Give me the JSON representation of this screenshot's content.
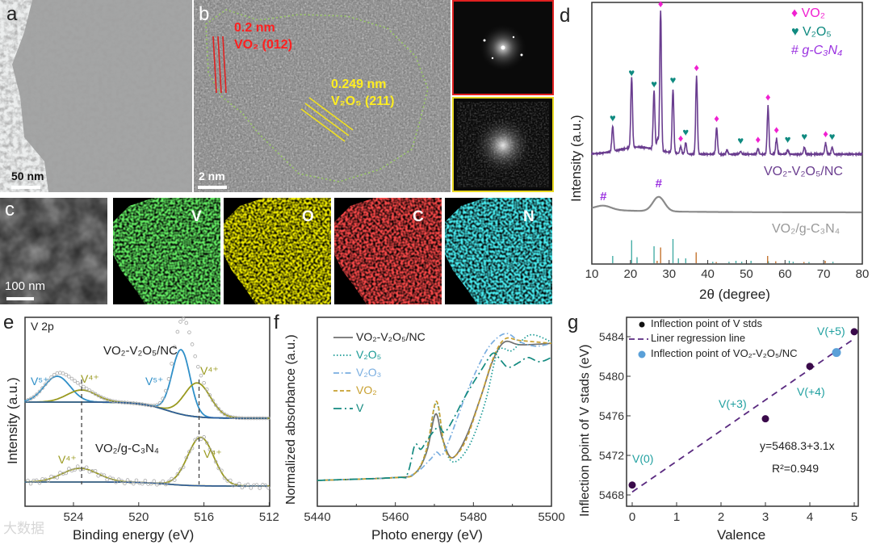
{
  "panels": {
    "a": {
      "letter": "a",
      "scale_bar": "50 nm"
    },
    "b": {
      "letter": "b",
      "scale_bar": "2 nm",
      "lattice1_spacing": "0.2 nm",
      "lattice1_phase": "VO₂ (012)",
      "lattice2_spacing": "0.249 nm",
      "lattice2_phase": "V₂O₅ (211)"
    },
    "c": {
      "letter": "c",
      "scale_bar": "100 nm",
      "maps": [
        "V",
        "O",
        "C",
        "N"
      ],
      "map_colors": [
        "#1fd11f",
        "#d8d000",
        "#e81010",
        "#10d0d8"
      ]
    },
    "d": {
      "letter": "d"
    },
    "e": {
      "letter": "e"
    },
    "f": {
      "letter": "f"
    },
    "g": {
      "letter": "g"
    }
  },
  "watermark": "大数据",
  "colors": {
    "purple": "#6a3d8f",
    "gray": "#8a8a8a",
    "magenta": "#f020d0",
    "teal": "#0f8a80",
    "orange": "#c06a20",
    "blue": "#2f8fc8",
    "olive": "#9a9a20"
  },
  "chart_data": [
    {
      "id": "d",
      "type": "line",
      "xlabel": "2θ (degree)",
      "ylabel": "Intensity (a.u.)",
      "xlim": [
        10,
        80
      ],
      "xticks": [
        10,
        20,
        30,
        40,
        50,
        60,
        70,
        80
      ],
      "legend": [
        {
          "symbol": "♦",
          "label": "VO₂"
        },
        {
          "symbol": "♥",
          "label": "V₂O₅"
        },
        {
          "symbol": "#",
          "label": "g-C₃N₄"
        }
      ],
      "legend_position": "top-right",
      "series": [
        {
          "name": "VO₂-V₂O₅/NC",
          "peaks": [
            [
              15.4,
              0.18
            ],
            [
              20.3,
              0.5
            ],
            [
              26.1,
              0.42
            ],
            [
              27.0,
              0.08
            ],
            [
              27.8,
              1.0
            ],
            [
              31.0,
              0.45
            ],
            [
              33.0,
              0.05
            ],
            [
              34.3,
              0.08
            ],
            [
              37.1,
              0.55
            ],
            [
              42.3,
              0.19
            ],
            [
              45.0,
              0.03
            ],
            [
              48.5,
              0.02
            ],
            [
              53.0,
              0.04
            ],
            [
              55.6,
              0.34
            ],
            [
              57.8,
              0.11
            ],
            [
              60.7,
              0.03
            ],
            [
              65.0,
              0.05
            ],
            [
              70.5,
              0.08
            ],
            [
              72.2,
              0.05
            ]
          ]
        },
        {
          "name": "VO₂/g-C₃N₄",
          "peaks": [
            [
              13.0,
              0.05
            ],
            [
              27.3,
              0.18
            ]
          ]
        }
      ],
      "markers_VO2": [
        27.8,
        33.0,
        37.1,
        42.3,
        53.0,
        55.6,
        57.8,
        70.5
      ],
      "markers_V2O5": [
        15.4,
        20.3,
        26.1,
        31.0,
        34.3,
        48.5,
        60.7,
        65.0,
        72.2
      ],
      "markers_gC3N4": [
        13.0,
        27.3
      ],
      "ref_V2O5": [
        [
          15.4,
          0.3
        ],
        [
          20.3,
          0.95
        ],
        [
          21.7,
          0.25
        ],
        [
          26.1,
          0.7
        ],
        [
          31.0,
          1.0
        ],
        [
          32.4,
          0.2
        ],
        [
          34.3,
          0.2
        ],
        [
          41.3,
          0.06
        ],
        [
          45.5,
          0.06
        ],
        [
          47.3,
          0.1
        ],
        [
          48.8,
          0.06
        ],
        [
          51.2,
          0.1
        ],
        [
          55.7,
          0.08
        ],
        [
          61.1,
          0.1
        ],
        [
          62.1,
          0.06
        ],
        [
          66.2,
          0.05
        ],
        [
          72.4,
          0.06
        ]
      ],
      "ref_VO2": [
        [
          26.9,
          0.1
        ],
        [
          27.8,
          0.65
        ],
        [
          37.0,
          0.45
        ],
        [
          42.2,
          0.05
        ],
        [
          55.5,
          0.3
        ],
        [
          57.6,
          0.08
        ],
        [
          64.9,
          0.05
        ],
        [
          70.4,
          0.1
        ]
      ]
    },
    {
      "id": "e",
      "type": "line",
      "title": "V 2p",
      "xlabel": "Binding energy (eV)",
      "ylabel": "Intensity (a.u.)",
      "xlim": [
        527,
        512
      ],
      "xticks": [
        524,
        520,
        516,
        512
      ],
      "samples": [
        {
          "name": "VO₂-V₂O₅/NC",
          "components": [
            {
              "label": "V⁵⁺",
              "center": 525.0,
              "amp": 32,
              "sigma": 0.8,
              "color": "blue"
            },
            {
              "label": "V⁴⁺",
              "center": 523.5,
              "amp": 15,
              "sigma": 0.9,
              "color": "olive"
            },
            {
              "label": "V⁵⁺",
              "center": 517.4,
              "amp": 80,
              "sigma": 0.55,
              "color": "blue"
            },
            {
              "label": "V⁴⁺",
              "center": 516.4,
              "amp": 42,
              "sigma": 0.8,
              "color": "olive"
            }
          ]
        },
        {
          "name": "VO₂/g-C₃N₄",
          "components": [
            {
              "label": "V⁴⁺",
              "center": 523.6,
              "amp": 17,
              "sigma": 1.1,
              "color": "olive"
            },
            {
              "label": "V⁴⁺",
              "center": 516.2,
              "amp": 60,
              "sigma": 0.8,
              "color": "olive"
            }
          ]
        }
      ],
      "reference_lines": [
        523.5,
        516.3
      ]
    },
    {
      "id": "f",
      "type": "line",
      "xlabel": "Photo energy (eV)",
      "ylabel": "Normalized absorbance (a.u.)",
      "xlim": [
        5440,
        5500
      ],
      "xticks": [
        5440,
        5460,
        5480,
        5500
      ],
      "legend_position": "top-left",
      "series": [
        {
          "name": "VO₂-V₂O₅/NC",
          "style": "solid",
          "color": "#707070",
          "points": [
            [
              5440,
              0
            ],
            [
              5460,
              0.02
            ],
            [
              5465,
              0.05
            ],
            [
              5468,
              0.2
            ],
            [
              5470.3,
              0.47
            ],
            [
              5472,
              0.3
            ],
            [
              5474.5,
              0.16
            ],
            [
              5478,
              0.3
            ],
            [
              5482,
              0.6
            ],
            [
              5485,
              0.85
            ],
            [
              5488,
              0.98
            ],
            [
              5492,
              0.96
            ],
            [
              5500,
              0.97
            ]
          ]
        },
        {
          "name": "V₂O₅",
          "style": "dotted",
          "color": "#1a9a95",
          "points": [
            [
              5440,
              0
            ],
            [
              5460,
              0.02
            ],
            [
              5465,
              0.05
            ],
            [
              5468,
              0.22
            ],
            [
              5470.5,
              0.55
            ],
            [
              5472.5,
              0.25
            ],
            [
              5475,
              0.13
            ],
            [
              5479,
              0.25
            ],
            [
              5483,
              0.55
            ],
            [
              5486,
              0.9
            ],
            [
              5488,
              0.93
            ],
            [
              5490,
              0.92
            ],
            [
              5494.5,
              1.03
            ],
            [
              5500,
              0.98
            ]
          ]
        },
        {
          "name": "V₂O₃",
          "style": "dashdot",
          "color": "#7aaee0",
          "points": [
            [
              5440,
              0
            ],
            [
              5460,
              0.02
            ],
            [
              5465,
              0.05
            ],
            [
              5469,
              0.15
            ],
            [
              5470.5,
              0.2
            ],
            [
              5472,
              0.18
            ],
            [
              5474,
              0.3
            ],
            [
              5478,
              0.6
            ],
            [
              5482,
              0.85
            ],
            [
              5485,
              0.98
            ],
            [
              5488.5,
              1.04
            ],
            [
              5492,
              0.98
            ],
            [
              5496,
              0.95
            ],
            [
              5500,
              0.97
            ]
          ]
        },
        {
          "name": "VO₂",
          "style": "dashed",
          "color": "#c8a030",
          "points": [
            [
              5440,
              0
            ],
            [
              5460,
              0.02
            ],
            [
              5465,
              0.05
            ],
            [
              5468,
              0.22
            ],
            [
              5470.5,
              0.56
            ],
            [
              5472.5,
              0.25
            ],
            [
              5474.5,
              0.16
            ],
            [
              5478,
              0.28
            ],
            [
              5482,
              0.6
            ],
            [
              5485,
              0.86
            ],
            [
              5488,
              1.0
            ],
            [
              5492,
              0.99
            ],
            [
              5500,
              0.97
            ]
          ]
        },
        {
          "name": "V",
          "style": "longdashdot",
          "color": "#138a80",
          "points": [
            [
              5440,
              0
            ],
            [
              5460,
              0.02
            ],
            [
              5463,
              0.04
            ],
            [
              5465,
              0.25
            ],
            [
              5466.5,
              0.22
            ],
            [
              5468,
              0.28
            ],
            [
              5471,
              0.38
            ],
            [
              5473,
              0.35
            ],
            [
              5478,
              0.6
            ],
            [
              5482,
              0.78
            ],
            [
              5485,
              0.9
            ],
            [
              5487,
              0.85
            ],
            [
              5489,
              0.8
            ],
            [
              5492,
              0.84
            ],
            [
              5494,
              0.87
            ],
            [
              5497,
              0.84
            ],
            [
              5500,
              0.87
            ]
          ]
        }
      ]
    },
    {
      "id": "g",
      "type": "scatter",
      "xlabel": "Valence",
      "ylabel": "Inflection point of V stads (eV)",
      "xlim": [
        -0.1,
        5.1
      ],
      "ylim": [
        5467.3,
        5485.5
      ],
      "xticks": [
        0,
        1,
        2,
        3,
        4,
        5
      ],
      "yticks": [
        5468,
        5472,
        5476,
        5480,
        5484
      ],
      "legend": [
        "Inflection point of V stds",
        "Liner regression line",
        "Inflection point of VO₂-V₂O₅/NC"
      ],
      "legend_position": "top-left",
      "standards": [
        {
          "label": "V(0)",
          "x": 0,
          "y": 5469.0
        },
        {
          "label": "V(+3)",
          "x": 3,
          "y": 5475.7
        },
        {
          "label": "V(+4)",
          "x": 4,
          "y": 5481.0
        },
        {
          "label": "V(+5)",
          "x": 5,
          "y": 5484.5
        }
      ],
      "sample": {
        "x": 4.6,
        "y": 5482.4
      },
      "fit": {
        "intercept": 5468.3,
        "slope": 3.1,
        "equation": "y=5468.3+3.1x",
        "r2": "R²=0.949"
      }
    }
  ]
}
